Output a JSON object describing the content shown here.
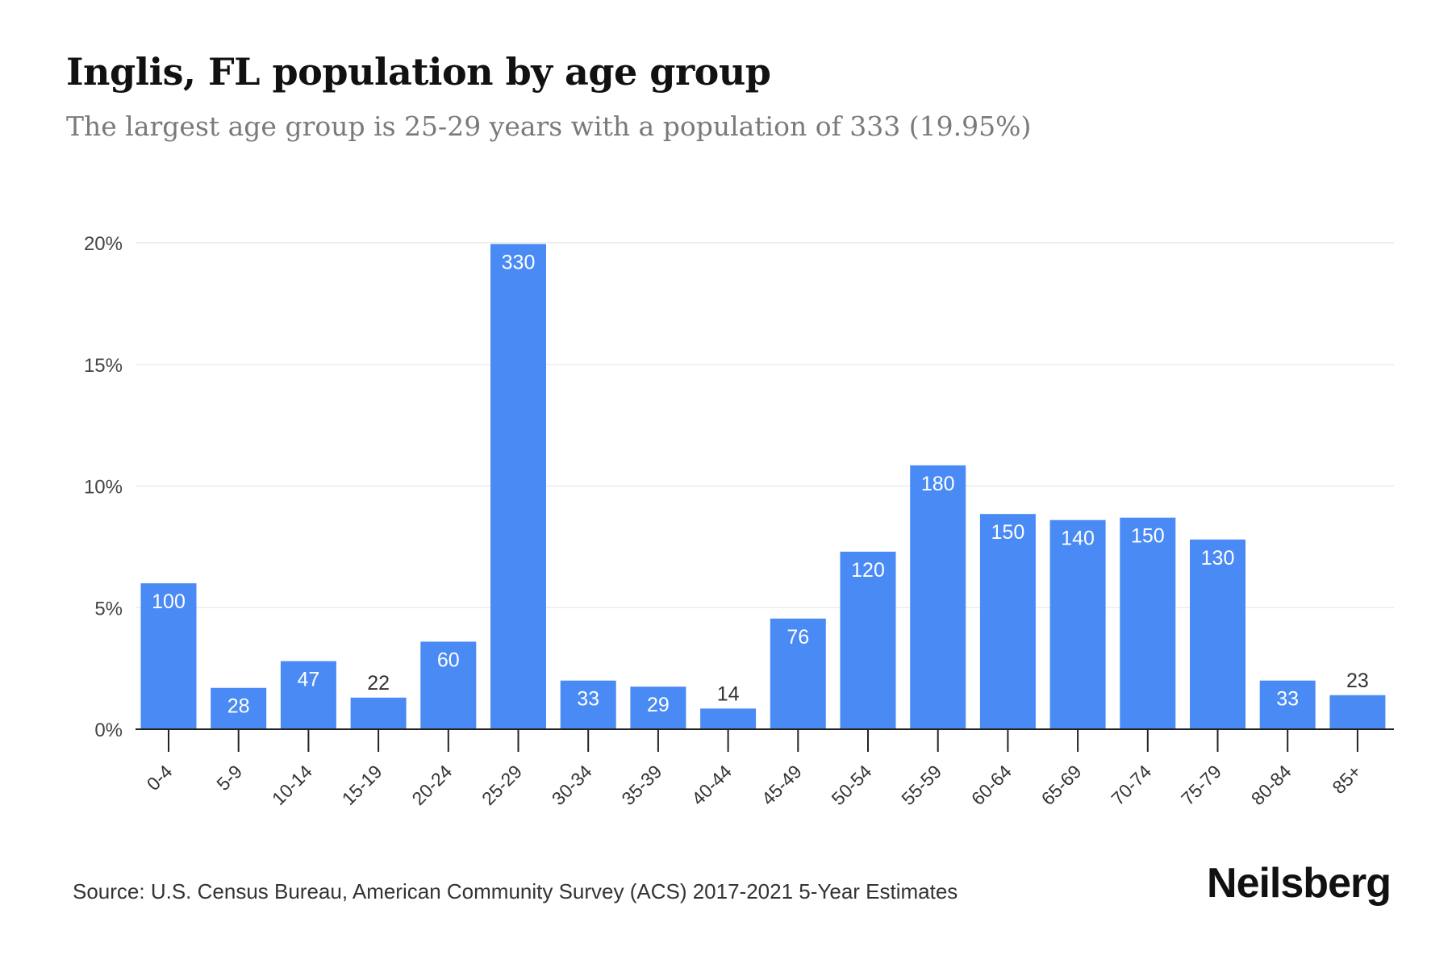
{
  "title": "Inglis, FL population by age group",
  "subtitle": "The largest age group is 25-29 years with a population of 333 (19.95%)",
  "source": "Source: U.S. Census Bureau, American Community Survey (ACS) 2017-2021 5-Year Estimates",
  "brand": "Neilsberg",
  "colors": {
    "bar": "#4a8af4",
    "grid": "#ececec",
    "axis": "#222222",
    "label_inside": "#ffffff",
    "label_outside": "#333333"
  },
  "chart_data": {
    "type": "bar",
    "title": "Inglis, FL population by age group",
    "subtitle": "The largest age group is 25-29 years with a population of 333 (19.95%)",
    "categories": [
      "0-4",
      "5-9",
      "10-14",
      "15-19",
      "20-24",
      "25-29",
      "30-34",
      "35-39",
      "40-44",
      "45-49",
      "50-54",
      "55-59",
      "60-64",
      "65-69",
      "70-74",
      "75-79",
      "80-84",
      "85+"
    ],
    "values_percent": [
      6.0,
      1.7,
      2.8,
      1.3,
      3.6,
      19.95,
      2.0,
      1.75,
      0.85,
      4.55,
      7.3,
      10.85,
      8.85,
      8.6,
      8.7,
      7.8,
      2.0,
      1.4
    ],
    "data_labels": [
      "100",
      "28",
      "47",
      "22",
      "60",
      "330",
      "33",
      "29",
      "14",
      "76",
      "120",
      "180",
      "150",
      "140",
      "150",
      "130",
      "33",
      "23"
    ],
    "ylim": [
      0,
      20
    ],
    "yticks": [
      0,
      5,
      10,
      15,
      20
    ],
    "ytick_labels": [
      "0%",
      "5%",
      "10%",
      "15%",
      "20%"
    ],
    "xlabel": "",
    "ylabel": "",
    "grid": true,
    "legend": "none"
  }
}
